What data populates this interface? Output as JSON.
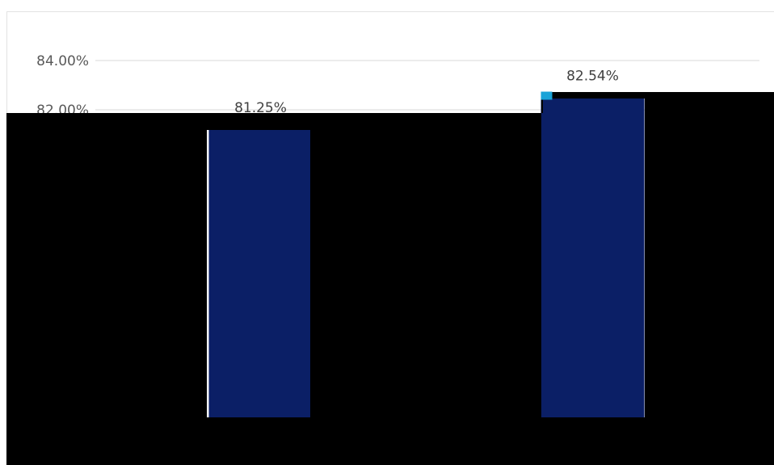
{
  "chart_data": {
    "type": "bar",
    "categories": [
      "",
      ""
    ],
    "values": [
      81.25,
      82.54
    ],
    "data_labels": [
      "81.25%",
      "82.54%"
    ],
    "y_ticks": [
      84,
      82
    ],
    "y_tick_labels": [
      "84.00%",
      "82.00%"
    ],
    "ylim": [
      75,
      84
    ],
    "grid": true,
    "legend": "none",
    "title": "",
    "xlabel": "",
    "ylabel": ""
  },
  "colors": {
    "bar": "#0b1f66",
    "bar_highlight": "#1aa3d8",
    "gridline": "#d9d9d9",
    "occlusion": "#000000"
  }
}
